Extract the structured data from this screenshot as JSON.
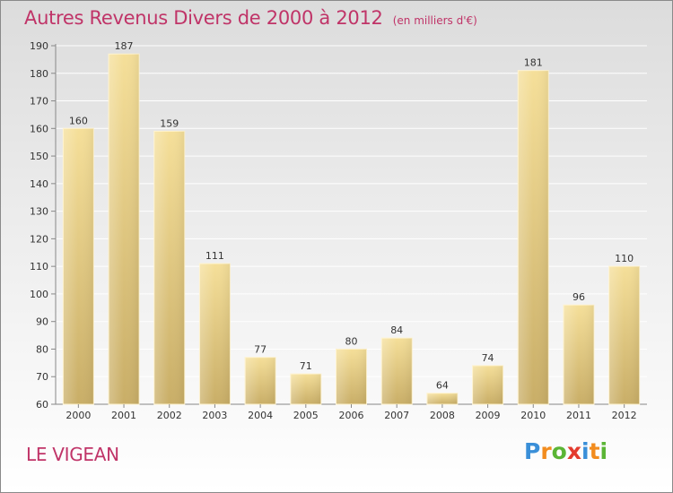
{
  "chart_data": {
    "type": "bar",
    "title": "Autres Revenus Divers de 2000 à 2012",
    "subtitle": "(en milliers d'€)",
    "categories": [
      "2000",
      "2001",
      "2002",
      "2003",
      "2004",
      "2005",
      "2006",
      "2007",
      "2008",
      "2009",
      "2010",
      "2011",
      "2012"
    ],
    "values": [
      160,
      187,
      159,
      111,
      77,
      71,
      80,
      84,
      64,
      74,
      181,
      96,
      110
    ],
    "ylim": [
      60,
      190
    ],
    "yticks": [
      60,
      70,
      80,
      90,
      100,
      110,
      120,
      130,
      140,
      150,
      160,
      170,
      180,
      190
    ],
    "grid": true,
    "bar_color_light": "#f5df99",
    "bar_color_dark": "#c9ae67"
  },
  "footer": {
    "commune": "LE VIGEAN",
    "logo_letters": [
      {
        "ch": "P",
        "color": "#3a8fd8"
      },
      {
        "ch": "r",
        "color": "#f28c1e"
      },
      {
        "ch": "o",
        "color": "#5bb535"
      },
      {
        "ch": "x",
        "color": "#e33b2e"
      },
      {
        "ch": "i",
        "color": "#3a8fd8"
      },
      {
        "ch": "t",
        "color": "#f28c1e"
      },
      {
        "ch": "i",
        "color": "#5bb535"
      }
    ]
  }
}
